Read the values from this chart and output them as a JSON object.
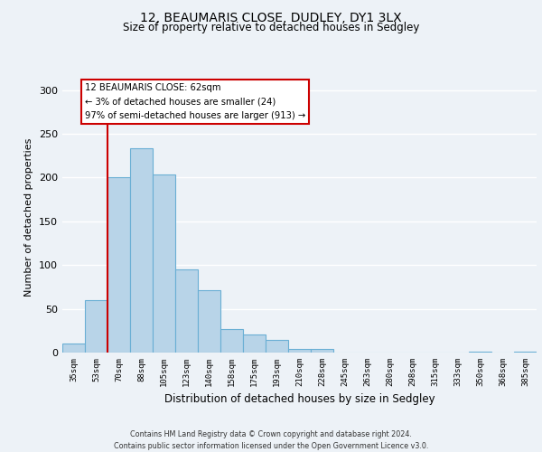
{
  "title_line1": "12, BEAUMARIS CLOSE, DUDLEY, DY1 3LX",
  "title_line2": "Size of property relative to detached houses in Sedgley",
  "xlabel": "Distribution of detached houses by size in Sedgley",
  "ylabel": "Number of detached properties",
  "bar_labels": [
    "35sqm",
    "53sqm",
    "70sqm",
    "88sqm",
    "105sqm",
    "123sqm",
    "140sqm",
    "158sqm",
    "175sqm",
    "193sqm",
    "210sqm",
    "228sqm",
    "245sqm",
    "263sqm",
    "280sqm",
    "298sqm",
    "315sqm",
    "333sqm",
    "350sqm",
    "368sqm",
    "385sqm"
  ],
  "bar_values": [
    10,
    60,
    200,
    234,
    204,
    95,
    71,
    27,
    21,
    14,
    4,
    4,
    0,
    0,
    0,
    0,
    0,
    0,
    1,
    0,
    1
  ],
  "bar_color": "#b8d4e8",
  "bar_edge_color": "#6aafd4",
  "ylim": [
    0,
    310
  ],
  "yticks": [
    0,
    50,
    100,
    150,
    200,
    250,
    300
  ],
  "redline_x": 1.5,
  "annotation_text_line1": "12 BEAUMARIS CLOSE: 62sqm",
  "annotation_text_line2": "← 3% of detached houses are smaller (24)",
  "annotation_text_line3": "97% of semi-detached houses are larger (913) →",
  "annotation_box_color": "#ffffff",
  "annotation_box_edge": "#cc0000",
  "red_line_color": "#cc0000",
  "footer_line1": "Contains HM Land Registry data © Crown copyright and database right 2024.",
  "footer_line2": "Contains public sector information licensed under the Open Government Licence v3.0.",
  "background_color": "#edf2f7",
  "grid_color": "#ffffff"
}
